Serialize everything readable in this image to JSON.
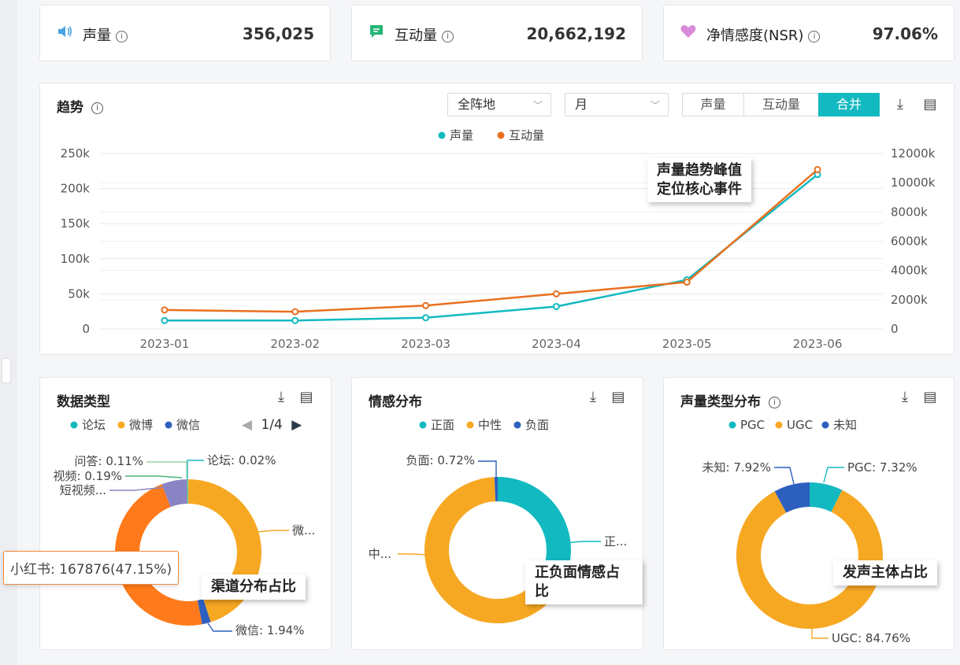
{
  "metrics": [
    {
      "label": "声量",
      "value": "356,025",
      "icon": "speaker-icon",
      "color": "#4aa3e0"
    },
    {
      "label": "互动量",
      "value": "20,662,192",
      "icon": "chat-icon",
      "color": "#22b573"
    },
    {
      "label": "净情感度(NSR)",
      "value": "97.06%",
      "icon": "heart-icon",
      "color": "#d98ad8"
    }
  ],
  "trend": {
    "title": "趋势",
    "region_select": "全阵地",
    "period_select": "月",
    "segments": [
      "声量",
      "互动量",
      "合并"
    ],
    "active_segment": "合并",
    "callout_lines": [
      "声量趋势峰值",
      "定位核心事件"
    ]
  },
  "pie_panels": [
    {
      "title": "数据类型",
      "callout": "渠道分布占比",
      "pager": "1/4",
      "tooltip": "小红书: 167876(47.15%)"
    },
    {
      "title": "情感分布",
      "callout": "正负面情感占比"
    },
    {
      "title": "声量类型分布",
      "callout": "发声主体占比"
    }
  ],
  "colors": {
    "teal": "#13b9c0",
    "orange": "#e8701f",
    "amber": "#f7a823",
    "blue": "#2d5fbf",
    "purple": "#8b84c4",
    "green": "#49b47f",
    "red": "#ff7a1a"
  },
  "chart_data": [
    {
      "type": "line",
      "x": [
        "2023-01",
        "2023-02",
        "2023-03",
        "2023-04",
        "2023-05",
        "2023-06"
      ],
      "series": [
        {
          "name": "声量",
          "axis": "left",
          "color": "#13b9c0",
          "values": [
            12000,
            12000,
            16000,
            32000,
            70000,
            220000
          ]
        },
        {
          "name": "互动量",
          "axis": "right",
          "color": "#e8701f",
          "values": [
            1300000,
            1180000,
            1600000,
            2400000,
            3200000,
            10900000
          ]
        }
      ],
      "y_left": {
        "ticks": [
          "0",
          "50k",
          "100k",
          "150k",
          "200k",
          "250k"
        ],
        "ylim": [
          0,
          250000
        ]
      },
      "y_right": {
        "ticks": [
          "0",
          "2000k",
          "4000k",
          "6000k",
          "8000k",
          "10000k",
          "12000k"
        ],
        "ylim": [
          0,
          12000000
        ]
      },
      "legend": "top-center"
    },
    {
      "type": "pie",
      "title": "数据类型",
      "legend": [
        "论坛",
        "微博",
        "微信"
      ],
      "slices": [
        {
          "name": "论坛",
          "value": 0.02,
          "color": "#13b9c0",
          "label": "论坛: 0.02%"
        },
        {
          "name": "微博",
          "value": 45.0,
          "color": "#f7a823",
          "label": "微..."
        },
        {
          "name": "微信",
          "value": 1.94,
          "color": "#2d5fbf",
          "label": "微信: 1.94%"
        },
        {
          "name": "小红书",
          "value": 47.15,
          "color": "#ff7a1a",
          "label": ""
        },
        {
          "name": "短视频",
          "value": 5.59,
          "color": "#8b84c4",
          "label": "短视频..."
        },
        {
          "name": "视频",
          "value": 0.19,
          "color": "#49b47f",
          "label": "视频: 0.19%"
        },
        {
          "name": "问答",
          "value": 0.11,
          "color": "#9bd0a0",
          "label": "问答: 0.11%"
        }
      ]
    },
    {
      "type": "pie",
      "title": "情感分布",
      "legend": [
        "正面",
        "中性",
        "负面"
      ],
      "slices": [
        {
          "name": "正面",
          "value": 34.0,
          "color": "#13b9c0",
          "label": "正..."
        },
        {
          "name": "中性",
          "value": 65.28,
          "color": "#f7a823",
          "label": "中..."
        },
        {
          "name": "负面",
          "value": 0.72,
          "color": "#2d5fbf",
          "label": "负面: 0.72%"
        }
      ]
    },
    {
      "type": "pie",
      "title": "声量类型分布",
      "legend": [
        "PGC",
        "UGC",
        "未知"
      ],
      "slices": [
        {
          "name": "PGC",
          "value": 7.32,
          "color": "#13b9c0",
          "label": "PGC: 7.32%"
        },
        {
          "name": "UGC",
          "value": 84.76,
          "color": "#f7a823",
          "label": "UGC: 84.76%"
        },
        {
          "name": "未知",
          "value": 7.92,
          "color": "#2d5fbf",
          "label": "未知: 7.92%"
        }
      ]
    }
  ]
}
